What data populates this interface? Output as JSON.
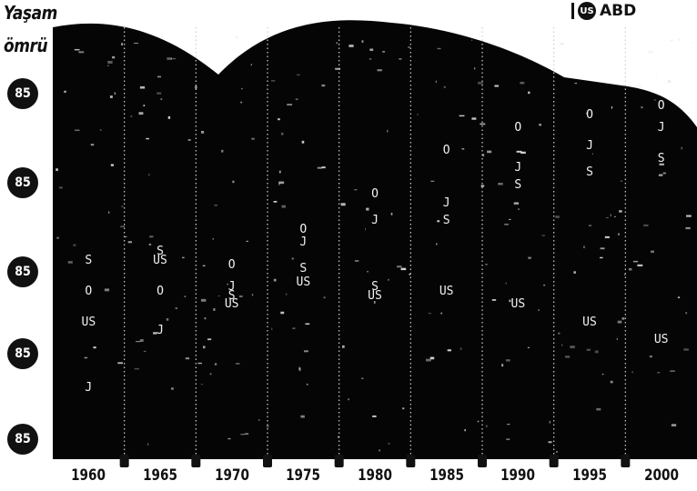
{
  "legend": {
    "code": "US",
    "label": "ABD"
  },
  "y_title": [
    "Yaşam",
    "ömrü"
  ],
  "y_badges": [
    "85",
    "85",
    "85",
    "85",
    "85"
  ],
  "chart_data": {
    "type": "scatter",
    "x_categories": [
      "1960",
      "1965",
      "1970",
      "1975",
      "1980",
      "1985",
      "1990",
      "1995",
      "2000"
    ],
    "ylabel": "Yaşam ömrü",
    "series": [
      {
        "name": "US",
        "values": [
          3.45,
          2.75,
          3.25,
          3.0,
          3.15,
          3.1,
          3.25,
          3.45,
          3.65
        ]
      },
      {
        "name": "J",
        "values": [
          4.2,
          3.55,
          3.05,
          2.55,
          2.3,
          2.1,
          1.7,
          1.45,
          1.25
        ]
      },
      {
        "name": "O",
        "values": [
          3.1,
          3.1,
          2.8,
          2.4,
          2.0,
          1.5,
          1.25,
          1.1,
          1.0
        ]
      },
      {
        "name": "S",
        "values": [
          2.75,
          2.65,
          3.15,
          2.85,
          3.05,
          2.3,
          1.9,
          1.75,
          1.6
        ]
      }
    ]
  }
}
